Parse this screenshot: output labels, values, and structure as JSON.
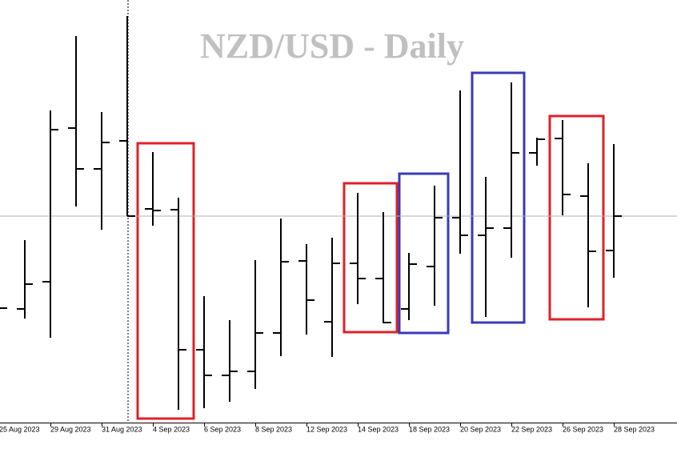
{
  "chart_data": {
    "type": "ohlc",
    "title": "NZD/USD - Daily",
    "categories": [
      "25 Aug 2023",
      null,
      "29 Aug 2023",
      null,
      "31 Aug 2023",
      null,
      "4 Sep 2023",
      null,
      "6 Sep 2023",
      null,
      "8 Sep 2023",
      null,
      "12 Sep 2023",
      null,
      "14 Sep 2023",
      null,
      "18 Sep 2023",
      null,
      "20 Sep 2023",
      null,
      "22 Sep 2023",
      null,
      "26 Sep 2023",
      null,
      "28 Sep 2023"
    ],
    "open": [
      0.58945,
      0.58942,
      0.59044,
      0.5962,
      0.59467,
      0.59572,
      0.59317,
      0.59314,
      0.58789,
      0.58693,
      0.58708,
      0.58852,
      0.59122,
      0.58894,
      0.59113,
      0.59056,
      0.58942,
      0.59101,
      0.59284,
      0.59218,
      0.59245,
      0.59527,
      0.59581,
      0.59365,
      0.59161
    ],
    "high": [
      0.5896,
      0.592,
      0.59686,
      0.59965,
      0.5968,
      0.6004,
      0.5953,
      0.59359,
      0.5899,
      0.589,
      0.59125,
      0.59281,
      0.59185,
      0.59209,
      0.59377,
      0.59305,
      0.59152,
      0.59404,
      0.59761,
      0.59437,
      0.59791,
      0.59584,
      0.5965,
      0.59488,
      0.5956
    ],
    "low": [
      0.5893,
      0.58906,
      0.58834,
      0.59326,
      0.59239,
      0.5929,
      0.59254,
      0.58564,
      0.5857,
      0.58594,
      0.58642,
      0.58765,
      0.58846,
      0.58762,
      0.5896,
      0.58888,
      0.589,
      0.58954,
      0.59149,
      0.58912,
      0.59134,
      0.59479,
      0.59293,
      0.58948,
      0.59059
    ],
    "close": [
      0.58945,
      0.59035,
      0.59614,
      0.59467,
      0.59566,
      0.5929,
      0.59311,
      0.58789,
      0.58693,
      0.58708,
      0.58852,
      0.59119,
      0.58975,
      0.59113,
      0.59056,
      0.58891,
      0.5911,
      0.59284,
      0.59218,
      0.59245,
      0.59527,
      0.59578,
      0.59371,
      0.59158,
      0.5929
    ],
    "price_line": 0.5929,
    "ylim": [
      0.58516,
      0.601
    ],
    "color": "#000000"
  }
}
